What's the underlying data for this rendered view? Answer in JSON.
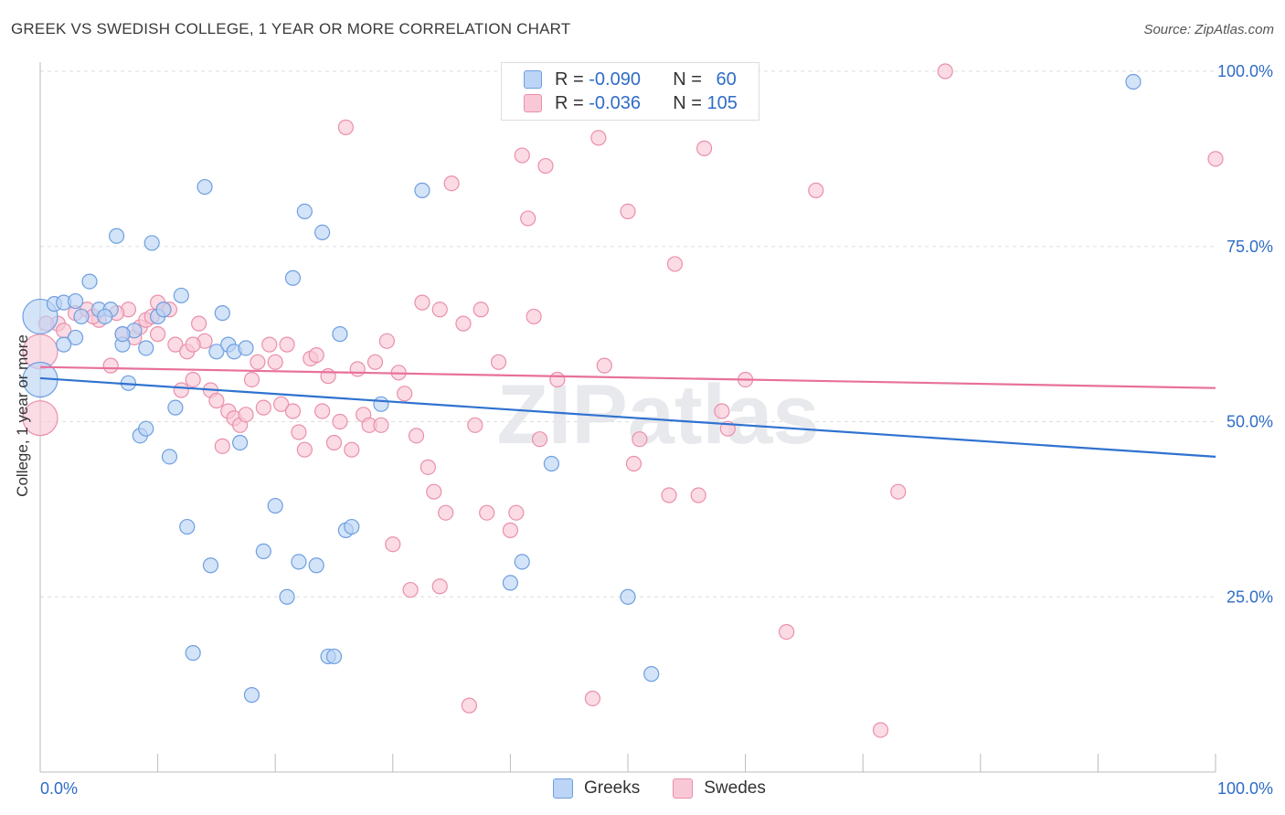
{
  "title": "GREEK VS SWEDISH COLLEGE, 1 YEAR OR MORE CORRELATION CHART",
  "source": "Source: ZipAtlas.com",
  "watermark": "ZIPatlas",
  "colors": {
    "greeks_fill": "#bcd4f5",
    "greeks_stroke": "#6e9fe0",
    "greeks_line": "#2f72d0",
    "swedes_fill": "#f9c8d6",
    "swedes_stroke": "#ea8fab",
    "swedes_line": "#e8709a",
    "value_text": "#2f6cc6"
  },
  "legend_top": {
    "rows": [
      {
        "r_label": "R = ",
        "r_value": "-0.090",
        "n_label": "N = ",
        "n_value": "60"
      },
      {
        "r_label": "R = ",
        "r_value": "-0.036",
        "n_label": "N = ",
        "n_value": "105"
      }
    ]
  },
  "legend_bottom": [
    "Greeks",
    "Swedes"
  ],
  "chart_data": {
    "type": "scatter",
    "title": "GREEK VS SWEDISH COLLEGE, 1 YEAR OR MORE CORRELATION CHART",
    "xlabel": "",
    "ylabel": "College, 1 year or more",
    "xlim": [
      0,
      100
    ],
    "ylim": [
      0,
      100
    ],
    "x_tick_labels": [
      "0.0%",
      "100.0%"
    ],
    "y_tick_labels": [
      "100.0%",
      "75.0%",
      "50.0%",
      "25.0%"
    ],
    "y_ticks": [
      100,
      75,
      50,
      25
    ],
    "grid": true,
    "legend_position": "top-center",
    "series": [
      {
        "name": "Greeks",
        "r": -0.09,
        "n": 60,
        "trend": [
          [
            0,
            56.2
          ],
          [
            100,
            45.0
          ]
        ],
        "points": [
          [
            0,
            65.0
          ],
          [
            0,
            56.0
          ],
          [
            1.2,
            66.8
          ],
          [
            2.0,
            67.0
          ],
          [
            3.0,
            67.2
          ],
          [
            3.5,
            65.0
          ],
          [
            4.2,
            70.0
          ],
          [
            5.0,
            66.0
          ],
          [
            6.0,
            66.0
          ],
          [
            6.5,
            76.5
          ],
          [
            7.0,
            61.0
          ],
          [
            7.5,
            55.5
          ],
          [
            8.0,
            63.0
          ],
          [
            8.5,
            48.0
          ],
          [
            9.0,
            49.0
          ],
          [
            9.5,
            75.5
          ],
          [
            10.0,
            65.0
          ],
          [
            10.5,
            66.0
          ],
          [
            11.0,
            45.0
          ],
          [
            11.5,
            52.0
          ],
          [
            12.0,
            68.0
          ],
          [
            12.5,
            35.0
          ],
          [
            13.0,
            17.0
          ],
          [
            14.0,
            83.5
          ],
          [
            14.5,
            29.5
          ],
          [
            15.0,
            60.0
          ],
          [
            15.5,
            65.5
          ],
          [
            16.0,
            61.0
          ],
          [
            16.5,
            60.0
          ],
          [
            17.0,
            47.0
          ],
          [
            17.5,
            60.5
          ],
          [
            18.0,
            11.0
          ],
          [
            19.0,
            31.5
          ],
          [
            20.0,
            38.0
          ],
          [
            21.0,
            25.0
          ],
          [
            21.5,
            70.5
          ],
          [
            22.0,
            30.0
          ],
          [
            22.5,
            80.0
          ],
          [
            23.5,
            29.5
          ],
          [
            24.0,
            77.0
          ],
          [
            24.5,
            16.5
          ],
          [
            25.0,
            16.5
          ],
          [
            25.5,
            62.5
          ],
          [
            26.0,
            34.5
          ],
          [
            26.5,
            35.0
          ],
          [
            29.0,
            52.5
          ],
          [
            32.5,
            83.0
          ],
          [
            40.0,
            27.0
          ],
          [
            41.0,
            30.0
          ],
          [
            43.5,
            44.0
          ],
          [
            45.5,
            100.0
          ],
          [
            50.0,
            25.0
          ],
          [
            52.0,
            14.0
          ],
          [
            56.5,
            100.0
          ],
          [
            93.0,
            98.5
          ],
          [
            9.0,
            60.5
          ],
          [
            5.5,
            65.0
          ],
          [
            3.0,
            62.0
          ],
          [
            2.0,
            61.0
          ],
          [
            7.0,
            62.5
          ]
        ]
      },
      {
        "name": "Swedes",
        "r": -0.036,
        "n": 105,
        "trend": [
          [
            0,
            57.8
          ],
          [
            100,
            54.8
          ]
        ],
        "points": [
          [
            0,
            60.0
          ],
          [
            0,
            50.5
          ],
          [
            1.5,
            64.0
          ],
          [
            2.0,
            63.0
          ],
          [
            3.0,
            65.5
          ],
          [
            4.0,
            66.0
          ],
          [
            5.0,
            64.5
          ],
          [
            6.0,
            58.0
          ],
          [
            7.0,
            62.5
          ],
          [
            7.5,
            66.0
          ],
          [
            8.0,
            62.0
          ],
          [
            8.5,
            63.5
          ],
          [
            9.0,
            64.5
          ],
          [
            9.5,
            65.0
          ],
          [
            10.0,
            67.0
          ],
          [
            10.5,
            66.0
          ],
          [
            11.0,
            66.0
          ],
          [
            11.5,
            61.0
          ],
          [
            12.0,
            54.5
          ],
          [
            12.5,
            60.0
          ],
          [
            13.0,
            56.0
          ],
          [
            13.5,
            64.0
          ],
          [
            14.0,
            61.5
          ],
          [
            14.5,
            54.5
          ],
          [
            15.0,
            53.0
          ],
          [
            15.5,
            46.5
          ],
          [
            16.0,
            51.5
          ],
          [
            16.5,
            50.5
          ],
          [
            17.0,
            49.5
          ],
          [
            17.5,
            51.0
          ],
          [
            18.0,
            56.0
          ],
          [
            18.5,
            58.5
          ],
          [
            19.0,
            52.0
          ],
          [
            19.5,
            61.0
          ],
          [
            20.0,
            58.5
          ],
          [
            20.5,
            52.5
          ],
          [
            21.0,
            61.0
          ],
          [
            21.5,
            51.5
          ],
          [
            22.0,
            48.5
          ],
          [
            22.5,
            46.0
          ],
          [
            23.0,
            59.0
          ],
          [
            23.5,
            59.5
          ],
          [
            24.0,
            51.5
          ],
          [
            24.5,
            56.5
          ],
          [
            25.0,
            47.0
          ],
          [
            25.5,
            50.0
          ],
          [
            26.0,
            92.0
          ],
          [
            26.5,
            46.0
          ],
          [
            27.0,
            57.5
          ],
          [
            27.5,
            51.0
          ],
          [
            28.0,
            49.5
          ],
          [
            28.5,
            58.5
          ],
          [
            29.0,
            49.5
          ],
          [
            29.5,
            61.5
          ],
          [
            30.0,
            32.5
          ],
          [
            30.5,
            57.0
          ],
          [
            31.0,
            54.0
          ],
          [
            31.5,
            26.0
          ],
          [
            32.0,
            48.0
          ],
          [
            32.5,
            67.0
          ],
          [
            33.0,
            43.5
          ],
          [
            33.5,
            40.0
          ],
          [
            34.0,
            66.0
          ],
          [
            34.5,
            37.0
          ],
          [
            35.0,
            84.0
          ],
          [
            36.0,
            64.0
          ],
          [
            36.5,
            9.5
          ],
          [
            37.0,
            49.5
          ],
          [
            37.5,
            66.0
          ],
          [
            38.0,
            37.0
          ],
          [
            39.0,
            58.5
          ],
          [
            40.0,
            34.5
          ],
          [
            40.5,
            37.0
          ],
          [
            41.0,
            88.0
          ],
          [
            41.5,
            79.0
          ],
          [
            42.0,
            65.0
          ],
          [
            42.5,
            47.5
          ],
          [
            43.0,
            86.5
          ],
          [
            44.0,
            56.0
          ],
          [
            47.0,
            10.5
          ],
          [
            47.5,
            90.5
          ],
          [
            48.0,
            58.0
          ],
          [
            50.0,
            80.0
          ],
          [
            50.5,
            44.0
          ],
          [
            51.0,
            47.5
          ],
          [
            53.5,
            39.5
          ],
          [
            54.0,
            72.5
          ],
          [
            56.0,
            39.5
          ],
          [
            56.5,
            89.0
          ],
          [
            58.0,
            51.5
          ],
          [
            58.5,
            49.0
          ],
          [
            60.0,
            56.0
          ],
          [
            63.5,
            20.0
          ],
          [
            66.0,
            83.0
          ],
          [
            71.5,
            6.0
          ],
          [
            73.0,
            40.0
          ],
          [
            77.0,
            100.0
          ],
          [
            100.0,
            87.5
          ],
          [
            0.5,
            64.0
          ],
          [
            4.5,
            65.0
          ],
          [
            6.5,
            65.5
          ],
          [
            10.0,
            62.5
          ],
          [
            13.0,
            61.0
          ],
          [
            34.0,
            26.5
          ],
          [
            46.0,
            100.0
          ]
        ]
      }
    ]
  }
}
